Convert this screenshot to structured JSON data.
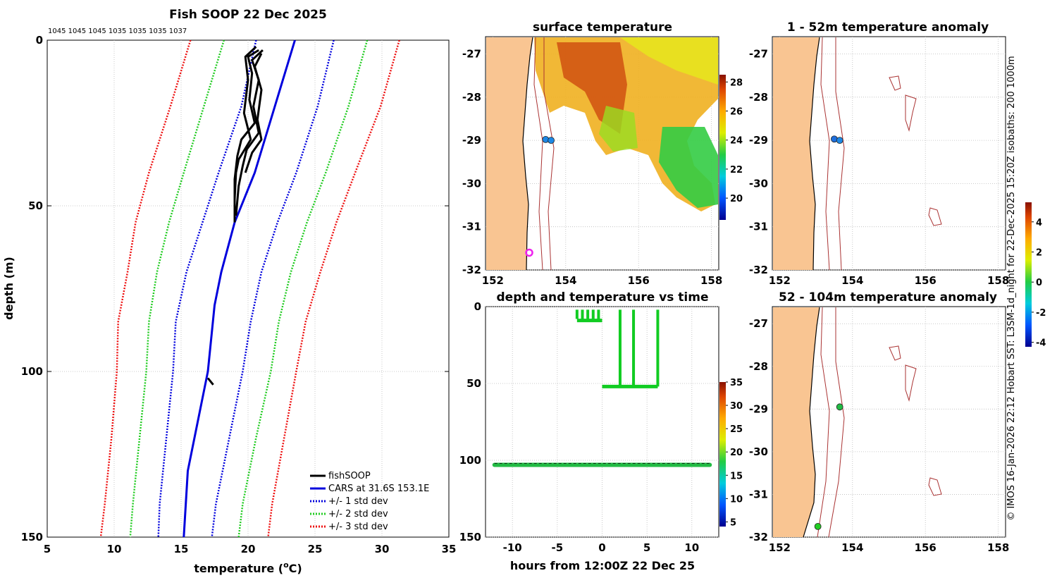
{
  "chart_data": [
    {
      "id": "profile",
      "type": "line",
      "title": "Fish SOOP 22 Dec 2025",
      "header_labels": "1045 1045 1045 1035 1035 1035 1037",
      "xlabel": "temperature (°C)",
      "xlabel_main": "temperature (",
      "xlabel_sup": "o",
      "xlabel_end": "C)",
      "ylabel": "depth (m)",
      "xlim": [
        5,
        35
      ],
      "ylim": [
        150,
        0
      ],
      "xticks": [
        5,
        10,
        15,
        20,
        25,
        30,
        35
      ],
      "yticks": [
        0,
        50,
        100,
        150
      ],
      "legend": [
        "fishSOOP",
        "CARS at 31.6S 153.1E",
        "+/- 1 std dev",
        "+/- 2 std dev",
        "+/- 3 std dev"
      ],
      "series": [
        {
          "name": "CARS at 31.6S 153.1E",
          "color": "#0000dd",
          "style": "solid",
          "points": [
            [
              23.5,
              0
            ],
            [
              22.0,
              20
            ],
            [
              20.5,
              40
            ],
            [
              19.0,
              55
            ],
            [
              18.0,
              70
            ],
            [
              17.5,
              80
            ],
            [
              17.0,
              100
            ],
            [
              16.5,
              110
            ],
            [
              15.5,
              130
            ],
            [
              15.2,
              150
            ]
          ]
        },
        {
          "name": "+1 std",
          "color": "#0000dd",
          "style": "dotted",
          "points": [
            [
              26.4,
              0
            ],
            [
              25.2,
              20
            ],
            [
              23.6,
              40
            ],
            [
              22.2,
              55
            ],
            [
              21.0,
              70
            ],
            [
              20.2,
              85
            ],
            [
              19.6,
              100
            ],
            [
              18.6,
              120
            ],
            [
              17.6,
              140
            ],
            [
              17.3,
              150
            ]
          ]
        },
        {
          "name": "-1 std",
          "color": "#0000dd",
          "style": "dotted",
          "points": [
            [
              20.6,
              0
            ],
            [
              19.5,
              20
            ],
            [
              17.8,
              40
            ],
            [
              16.6,
              55
            ],
            [
              15.4,
              70
            ],
            [
              14.6,
              85
            ],
            [
              14.4,
              100
            ],
            [
              13.9,
              120
            ],
            [
              13.4,
              140
            ],
            [
              13.3,
              150
            ]
          ]
        },
        {
          "name": "+2 std",
          "color": "#22cc22",
          "style": "dotted",
          "points": [
            [
              28.9,
              0
            ],
            [
              27.5,
              20
            ],
            [
              25.8,
              40
            ],
            [
              24.4,
              55
            ],
            [
              23.2,
              70
            ],
            [
              22.3,
              85
            ],
            [
              21.7,
              100
            ],
            [
              20.6,
              120
            ],
            [
              19.6,
              140
            ],
            [
              19.3,
              150
            ]
          ]
        },
        {
          "name": "-2 std",
          "color": "#22cc22",
          "style": "dotted",
          "points": [
            [
              18.2,
              0
            ],
            [
              16.7,
              20
            ],
            [
              15.2,
              40
            ],
            [
              14.1,
              55
            ],
            [
              13.2,
              70
            ],
            [
              12.6,
              85
            ],
            [
              12.4,
              100
            ],
            [
              11.9,
              120
            ],
            [
              11.4,
              140
            ],
            [
              11.2,
              150
            ]
          ]
        },
        {
          "name": "+3 std",
          "color": "#ee1111",
          "style": "dotted",
          "points": [
            [
              31.3,
              0
            ],
            [
              29.9,
              20
            ],
            [
              28.0,
              40
            ],
            [
              26.6,
              55
            ],
            [
              25.4,
              70
            ],
            [
              24.3,
              85
            ],
            [
              23.6,
              100
            ],
            [
              22.7,
              120
            ],
            [
              21.8,
              140
            ],
            [
              21.5,
              150
            ]
          ]
        },
        {
          "name": "-3 std",
          "color": "#ee1111",
          "style": "dotted",
          "points": [
            [
              15.7,
              0
            ],
            [
              14.2,
              20
            ],
            [
              12.6,
              40
            ],
            [
              11.6,
              55
            ],
            [
              11.0,
              70
            ],
            [
              10.3,
              85
            ],
            [
              10.2,
              100
            ],
            [
              9.8,
              120
            ],
            [
              9.3,
              140
            ],
            [
              9.0,
              150
            ]
          ]
        },
        {
          "name": "fishSOOP",
          "color": "#000000",
          "style": "solid",
          "points": [
            [
              20.8,
              3
            ],
            [
              20.0,
              5
            ],
            [
              20.3,
              10
            ],
            [
              20.1,
              18
            ],
            [
              20.5,
              25
            ],
            [
              19.5,
              30
            ],
            [
              19.2,
              35
            ],
            [
              19.0,
              42
            ],
            [
              19.0,
              55
            ]
          ]
        },
        {
          "name": "fishSOOP cast 2",
          "color": "#000000",
          "style": "solid",
          "points": [
            [
              21.1,
              3
            ],
            [
              20.3,
              6
            ],
            [
              20.8,
              12
            ],
            [
              20.4,
              20
            ],
            [
              20.8,
              28
            ],
            [
              19.9,
              33
            ],
            [
              19.6,
              38
            ],
            [
              19.3,
              44
            ],
            [
              19.1,
              53
            ]
          ]
        },
        {
          "name": "fishSOOP cast 3",
          "color": "#000000",
          "style": "solid",
          "points": [
            [
              20.6,
              2
            ],
            [
              19.8,
              5
            ],
            [
              20.0,
              12
            ],
            [
              19.7,
              22
            ],
            [
              20.2,
              30
            ],
            [
              19.3,
              36
            ],
            [
              19.1,
              40
            ],
            [
              19.0,
              48
            ]
          ]
        },
        {
          "name": "fishSOOP cast 4",
          "color": "#000000",
          "style": "solid",
          "points": [
            [
              21.0,
              4
            ],
            [
              20.5,
              8
            ],
            [
              21.0,
              15
            ],
            [
              20.7,
              24
            ],
            [
              21.0,
              30
            ],
            [
              20.3,
              34
            ],
            [
              19.8,
              40
            ]
          ]
        },
        {
          "name": "fishSOOP deep",
          "color": "#000000",
          "style": "solid",
          "points": [
            [
              17.0,
              102
            ],
            [
              17.4,
              104
            ]
          ]
        }
      ]
    },
    {
      "id": "sst_map",
      "type": "heatmap",
      "title": "surface temperature",
      "xlim": [
        151.8,
        158.2
      ],
      "ylim": [
        -32,
        -26.6
      ],
      "xticks": [
        152,
        154,
        156,
        158
      ],
      "yticks": [
        -27,
        -28,
        -29,
        -30,
        -31,
        -32
      ],
      "colorbar": {
        "min": 18.5,
        "max": 28.5,
        "ticks": [
          20,
          22,
          24,
          26,
          28
        ]
      },
      "markers": [
        {
          "lon": 153.45,
          "lat": -28.98,
          "color": "#1e88e5"
        },
        {
          "lon": 153.6,
          "lat": -29.0,
          "color": "#1e88e5"
        },
        {
          "lon": 153.0,
          "lat": -31.6,
          "color": "#ee22ee",
          "style": "ring"
        }
      ]
    },
    {
      "id": "anom_shallow",
      "type": "heatmap",
      "title": "1 - 52m temperature anomaly",
      "xlim": [
        151.8,
        158.2
      ],
      "ylim": [
        -32,
        -26.6
      ],
      "xticks": [
        152,
        154,
        156,
        158
      ],
      "yticks": [
        -27,
        -28,
        -29,
        -30,
        -31,
        -32
      ],
      "markers": [
        {
          "lon": 153.5,
          "lat": -28.97,
          "color": "#1e6fdd"
        },
        {
          "lon": 153.65,
          "lat": -29.0,
          "color": "#1e88e5"
        }
      ]
    },
    {
      "id": "depth_time",
      "type": "scatter",
      "title": "depth and temperature vs time",
      "xlabel": "hours from 12:00Z 22 Dec 25",
      "xlim": [
        -13,
        13
      ],
      "ylim": [
        150,
        0
      ],
      "xticks": [
        -10,
        -5,
        0,
        5,
        10
      ],
      "yticks": [
        0,
        50,
        100,
        150
      ],
      "colorbar": {
        "min": 4,
        "max": 35,
        "ticks": [
          5,
          10,
          15,
          20,
          25,
          30,
          35
        ]
      },
      "series": [
        {
          "name": "deep",
          "depth": 103,
          "x_range": [
            -12,
            12
          ],
          "color": "#22bb44"
        },
        {
          "name": "shallow casts",
          "depth_range": [
            2,
            52
          ],
          "x_range": [
            -3,
            6.5
          ],
          "color": "#11cc22"
        }
      ]
    },
    {
      "id": "anom_deep",
      "type": "heatmap",
      "title": "52 - 104m temperature anomaly",
      "xlim": [
        151.8,
        158.2
      ],
      "ylim": [
        -32,
        -26.6
      ],
      "xticks": [
        152,
        154,
        156,
        158
      ],
      "yticks": [
        -27,
        -28,
        -29,
        -30,
        -31,
        -32
      ],
      "colorbar": {
        "min": -4.3,
        "max": 5.3,
        "ticks": [
          4,
          2,
          0,
          -2,
          -4
        ]
      },
      "markers": [
        {
          "lon": 153.65,
          "lat": -28.95,
          "color": "#22bb44"
        },
        {
          "lon": 153.05,
          "lat": -31.75,
          "color": "#22cc22"
        }
      ]
    }
  ],
  "side_text": "© IMOS 16-Jan-2026 22:12 Hobart SST: L3SM-1d_night for 22-Dec-2025 15:20Z isobaths: 200  1000m"
}
